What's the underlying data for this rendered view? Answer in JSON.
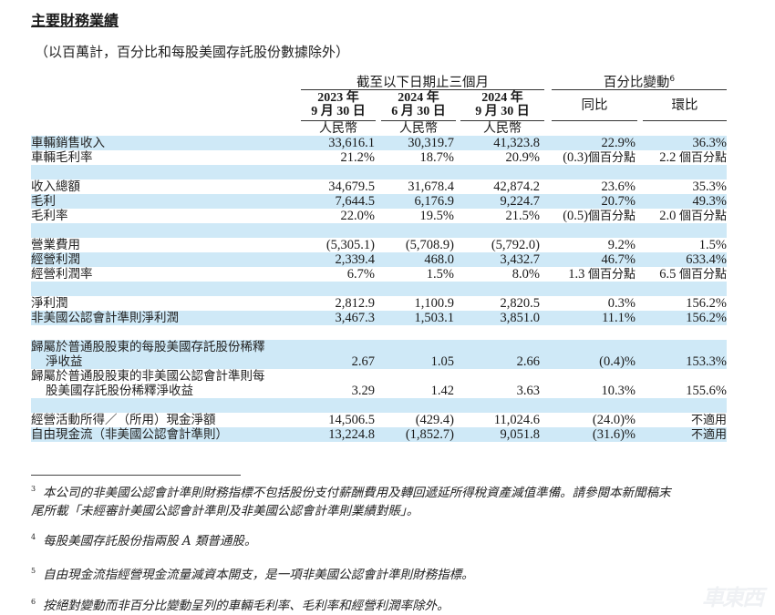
{
  "title": "主要財務業績",
  "subtitle": "（以百萬計，百分比和每股美國存託股份數據除外）",
  "header": {
    "period_group": "截至以下日期止三個月",
    "change_group": "百分比變動",
    "change_group_footnote": "6",
    "columns": [
      {
        "year": "2023 年",
        "date": "9 月 30 日",
        "currency": "人民幣"
      },
      {
        "year": "2024 年",
        "date": "6 月 30 日",
        "currency": "人民幣"
      },
      {
        "year": "2024 年",
        "date": "9 月 30 日",
        "currency": "人民幣"
      }
    ],
    "yoy": "同比",
    "qoq": "環比"
  },
  "rows": [
    {
      "label": "車輛銷售收入",
      "q3_2023": "33,616.1",
      "q2_2024": "30,319.7",
      "q3_2024": "41,323.8",
      "yoy": "22.9%",
      "qoq": "36.3%",
      "band": true
    },
    {
      "label": "車輛毛利率",
      "q3_2023": "21.2%",
      "q2_2024": "18.7%",
      "q3_2024": "20.9%",
      "yoy": "(0.3)個百分點",
      "qoq": "2.2 個百分點",
      "band": false
    },
    {
      "label": "",
      "band": true
    },
    {
      "label": "收入總額",
      "q3_2023": "34,679.5",
      "q2_2024": "31,678.4",
      "q3_2024": "42,874.2",
      "yoy": "23.6%",
      "qoq": "35.3%",
      "band": false
    },
    {
      "label": "毛利",
      "q3_2023": "7,644.5",
      "q2_2024": "6,176.9",
      "q3_2024": "9,224.7",
      "yoy": "20.7%",
      "qoq": "49.3%",
      "band": true
    },
    {
      "label": "毛利率",
      "q3_2023": "22.0%",
      "q2_2024": "19.5%",
      "q3_2024": "21.5%",
      "yoy": "(0.5)個百分點",
      "qoq": "2.0 個百分點",
      "band": false
    },
    {
      "label": "",
      "band": true
    },
    {
      "label": "營業費用",
      "q3_2023": "(5,305.1)",
      "q2_2024": "(5,708.9)",
      "q3_2024": "(5,792.0)",
      "yoy": "9.2%",
      "qoq": "1.5%",
      "band": false
    },
    {
      "label": "經營利潤",
      "q3_2023": "2,339.4",
      "q2_2024": "468.0",
      "q3_2024": "3,432.7",
      "yoy": "46.7%",
      "qoq": "633.4%",
      "band": true
    },
    {
      "label": "經營利潤率",
      "q3_2023": "6.7%",
      "q2_2024": "1.5%",
      "q3_2024": "8.0%",
      "yoy": "1.3 個百分點",
      "qoq": "6.5 個百分點",
      "band": false
    },
    {
      "label": "",
      "band": true
    },
    {
      "label": "淨利潤",
      "q3_2023": "2,812.9",
      "q2_2024": "1,100.9",
      "q3_2024": "2,820.5",
      "yoy": "0.3%",
      "qoq": "156.2%",
      "band": false
    },
    {
      "label": "非美國公認會計準則淨利潤",
      "q3_2023": "3,467.3",
      "q2_2024": "1,503.1",
      "q3_2024": "3,851.0",
      "yoy": "11.1%",
      "qoq": "156.2%",
      "band": true
    },
    {
      "label": "",
      "band": false
    },
    {
      "label": "歸屬於普通股股東的每股美國存託股份稀釋",
      "label_line2": "淨收益",
      "q3_2023": "2.67",
      "q2_2024": "1.05",
      "q3_2024": "2.66",
      "yoy": "(0.4)%",
      "qoq": "153.3%",
      "band": true,
      "tall": true
    },
    {
      "label": "歸屬於普通股股東的非美國公認會計準則每",
      "label_line2": "股美國存託股份稀釋淨收益",
      "q3_2023": "3.29",
      "q2_2024": "1.42",
      "q3_2024": "3.63",
      "yoy": "10.3%",
      "qoq": "155.6%",
      "band": false,
      "tall": true
    },
    {
      "label": "",
      "band": true
    },
    {
      "label": "經營活動所得／（所用）現金淨額",
      "q3_2023": "14,506.5",
      "q2_2024": "(429.4)",
      "q3_2024": "11,024.6",
      "yoy": "(24.0)%",
      "qoq": "不適用",
      "band": false
    },
    {
      "label": "自由現金流（非美國公認會計準則）",
      "q3_2023": "13,224.8",
      "q2_2024": "(1,852.7)",
      "q3_2024": "9,051.8",
      "yoy": "(31.6)%",
      "qoq": "不適用",
      "band": true
    }
  ],
  "footnotes": [
    {
      "num": "3",
      "text": "本公司的非美國公認會計準則財務指標不包括股份支付薪酬費用及轉回遞延所得稅資產減值準備。請參閱本新聞稿末",
      "text_line2": "尾所載「未經審計美國公認會計準則及非美國公認會計準則業績對賬」。"
    },
    {
      "num": "4",
      "text": "每股美國存託股份指兩股 A 類普通股。"
    },
    {
      "num": "5",
      "text": "自由現金流指經營現金流量減資本開支，是一項非美國公認會計準則財務指標。"
    },
    {
      "num": "6",
      "text": "按絕對變動而非百分比變動呈列的車輛毛利率、毛利率和經營利潤率除外。"
    }
  ],
  "watermark": "車東西",
  "colors": {
    "band": "#cfe9f7",
    "rule": "#333333"
  }
}
